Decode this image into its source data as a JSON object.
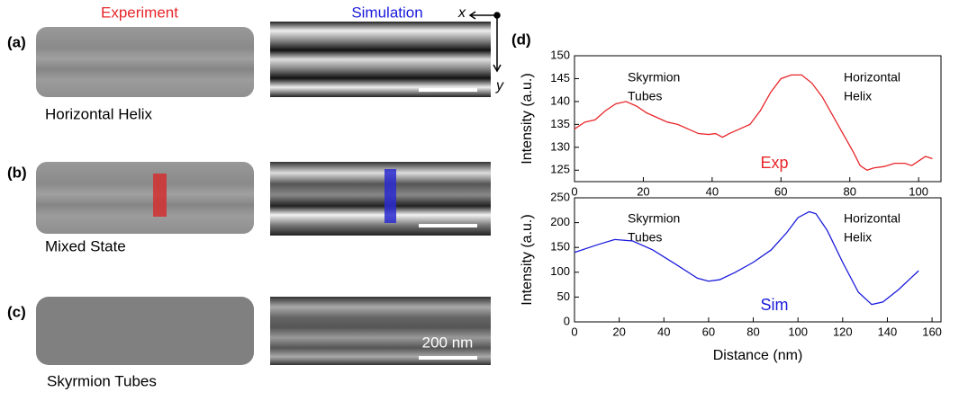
{
  "figure": {
    "column_headers": [
      "Experiment",
      "Simulation"
    ],
    "axes": [
      "x",
      "y"
    ],
    "panels": [
      {
        "label": "(a)",
        "caption": "Horizontal Helix"
      },
      {
        "label": "(b)",
        "caption": "Mixed State"
      },
      {
        "label": "(c)",
        "caption": "Skyrmion Tubes",
        "scale": "200 nm"
      },
      {
        "label": "(d)"
      }
    ]
  },
  "chart_data": [
    {
      "type": "line",
      "y_label": "Intensity (a.u.)",
      "x": [
        0,
        3,
        6,
        9,
        12,
        15,
        18,
        21,
        24,
        27,
        30,
        33,
        36,
        39,
        41,
        43,
        45,
        48,
        51,
        54,
        57,
        60,
        63,
        66,
        69,
        72,
        75,
        78,
        81,
        83,
        85,
        87,
        90,
        93,
        96,
        98,
        100,
        102,
        104
      ],
      "series": [
        {
          "name": "Exp",
          "color": "#e8262a",
          "values": [
            134,
            135.5,
            136,
            138,
            139.5,
            140,
            139,
            137.5,
            136.5,
            135.5,
            135,
            134,
            133,
            132.8,
            133,
            132.2,
            133,
            134,
            135,
            138,
            142,
            145,
            145.8,
            145.8,
            144,
            141,
            137,
            133,
            129,
            126,
            125,
            125.5,
            125.8,
            126.5,
            126.5,
            126,
            127,
            128,
            127.5
          ]
        }
      ],
      "xlim": [
        0,
        106.5
      ],
      "xticks": [
        0,
        20,
        40,
        60,
        80,
        100
      ],
      "ylim": [
        122.5,
        150
      ],
      "yticks": [
        125,
        130,
        135,
        140,
        145,
        150
      ],
      "annotations": [
        "Skyrmion",
        "Tubes",
        "Horizontal",
        "Helix"
      ]
    },
    {
      "type": "line",
      "y_label": "Intensity (a.u.)",
      "x_label": "Distance (nm)",
      "x": [
        0,
        10,
        18,
        26,
        35,
        45,
        55,
        60,
        65,
        72,
        80,
        88,
        95,
        100,
        105,
        108,
        113,
        120,
        127,
        133,
        138,
        145,
        154
      ],
      "series": [
        {
          "name": "Sim",
          "color": "#1a1adc",
          "values": [
            140,
            155,
            166,
            163,
            145,
            117,
            88,
            82,
            85,
            100,
            120,
            145,
            180,
            210,
            222,
            218,
            185,
            120,
            60,
            35,
            40,
            65,
            103
          ]
        }
      ],
      "xlim": [
        0,
        164
      ],
      "xticks": [
        0,
        20,
        40,
        60,
        80,
        100,
        120,
        140,
        160
      ],
      "ylim": [
        0,
        250
      ],
      "yticks": [
        0,
        50,
        100,
        150,
        200,
        250
      ],
      "annotations": [
        "Skyrmion",
        "Tubes",
        "Horizontal",
        "Helix"
      ]
    }
  ]
}
